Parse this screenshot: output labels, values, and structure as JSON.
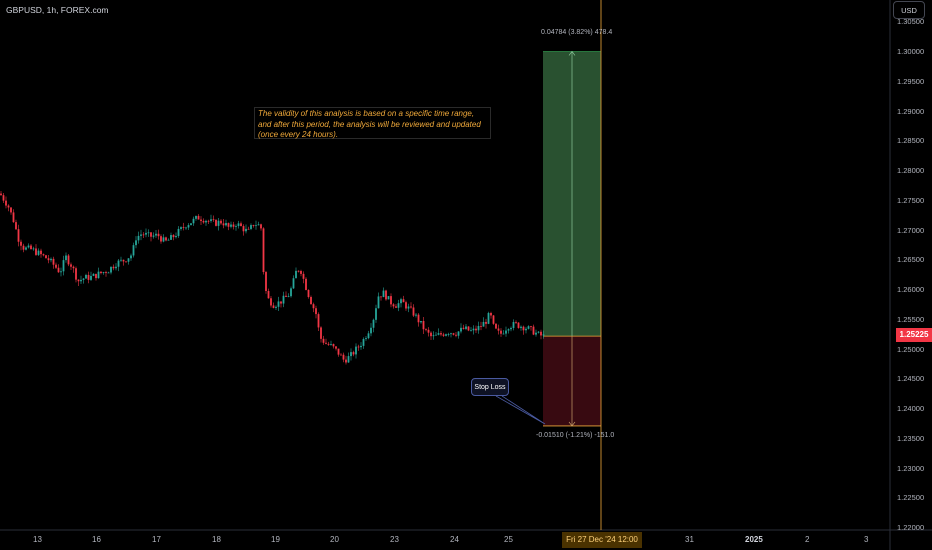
{
  "header": {
    "symbol": "GBPUSD, 1h, FOREX.com",
    "currency": "USD"
  },
  "price_axis": {
    "labels": [
      "1.30500",
      "1.30000",
      "1.29500",
      "1.29000",
      "1.28500",
      "1.28000",
      "1.27500",
      "1.27000",
      "1.26500",
      "1.26000",
      "1.25500",
      "1.25000",
      "1.24500",
      "1.24000",
      "1.23500",
      "1.23000",
      "1.22500",
      "1.22000"
    ],
    "current_price": "1.25225",
    "current_price_color": "#f23645"
  },
  "time_axis": {
    "labels": [
      {
        "text": "13",
        "bold": false
      },
      {
        "text": "16",
        "bold": false
      },
      {
        "text": "17",
        "bold": false
      },
      {
        "text": "18",
        "bold": false
      },
      {
        "text": "19",
        "bold": false
      },
      {
        "text": "20",
        "bold": false
      },
      {
        "text": "23",
        "bold": false
      },
      {
        "text": "24",
        "bold": false
      },
      {
        "text": "25",
        "bold": false
      },
      {
        "text": "31",
        "bold": false
      },
      {
        "text": "2025",
        "bold": true
      },
      {
        "text": "2",
        "bold": false
      },
      {
        "text": "3",
        "bold": false
      }
    ],
    "crosshair_label": "Fri 27 Dec '24   12:00"
  },
  "annotation": {
    "note": "The validity of this analysis is based on a specific time range, and after this period, the analysis will be reviewed and updated (once every 24 hours).",
    "note_color": "#f0a93a"
  },
  "position": {
    "entry": 1.25225,
    "target": 1.30009,
    "stop": 1.23715,
    "target_label": "0.04784 (3.82%) 478.4",
    "stop_label": "-0.01510 (-1.21%) -151.0",
    "stop_callout": "Stop Loss",
    "profit_color": "#2e5a35",
    "loss_color": "#3b0b12"
  },
  "chart_data": {
    "type": "candlestick",
    "up_color": "#26a69a",
    "down_color": "#f23645",
    "close_path": [
      [
        0,
        1.2762
      ],
      [
        8,
        1.2742
      ],
      [
        14,
        1.2715
      ],
      [
        18,
        1.2688
      ],
      [
        24,
        1.267
      ],
      [
        32,
        1.2668
      ],
      [
        40,
        1.266
      ],
      [
        48,
        1.2652
      ],
      [
        55,
        1.264
      ],
      [
        60,
        1.263
      ],
      [
        66,
        1.2655
      ],
      [
        72,
        1.264
      ],
      [
        78,
        1.2615
      ],
      [
        84,
        1.262
      ],
      [
        92,
        1.2622
      ],
      [
        100,
        1.2628
      ],
      [
        108,
        1.2633
      ],
      [
        116,
        1.2645
      ],
      [
        124,
        1.265
      ],
      [
        132,
        1.266
      ],
      [
        136,
        1.2688
      ],
      [
        142,
        1.2695
      ],
      [
        150,
        1.269
      ],
      [
        158,
        1.2692
      ],
      [
        165,
        1.268
      ],
      [
        172,
        1.2688
      ],
      [
        180,
        1.27
      ],
      [
        186,
        1.271
      ],
      [
        192,
        1.2715
      ],
      [
        198,
        1.2722
      ],
      [
        206,
        1.2718
      ],
      [
        214,
        1.2712
      ],
      [
        222,
        1.2715
      ],
      [
        230,
        1.2703
      ],
      [
        236,
        1.2712
      ],
      [
        242,
        1.2705
      ],
      [
        248,
        1.2697
      ],
      [
        254,
        1.2712
      ],
      [
        260,
        1.2708
      ],
      [
        262,
        1.27
      ],
      [
        264,
        1.261
      ],
      [
        268,
        1.2585
      ],
      [
        274,
        1.2575
      ],
      [
        280,
        1.258
      ],
      [
        288,
        1.259
      ],
      [
        292,
        1.2605
      ],
      [
        296,
        1.263
      ],
      [
        300,
        1.2638
      ],
      [
        305,
        1.261
      ],
      [
        310,
        1.2585
      ],
      [
        316,
        1.256
      ],
      [
        320,
        1.252
      ],
      [
        326,
        1.251
      ],
      [
        332,
        1.2505
      ],
      [
        338,
        1.2495
      ],
      [
        344,
        1.2482
      ],
      [
        350,
        1.2488
      ],
      [
        356,
        1.25
      ],
      [
        362,
        1.2512
      ],
      [
        368,
        1.253
      ],
      [
        374,
        1.2555
      ],
      [
        378,
        1.259
      ],
      [
        384,
        1.2595
      ],
      [
        390,
        1.258
      ],
      [
        396,
        1.2575
      ],
      [
        402,
        1.258
      ],
      [
        408,
        1.257
      ],
      [
        414,
        1.256
      ],
      [
        420,
        1.2545
      ],
      [
        426,
        1.253
      ],
      [
        432,
        1.252
      ],
      [
        440,
        1.2525
      ],
      [
        448,
        1.253
      ],
      [
        456,
        1.2528
      ],
      [
        464,
        1.2535
      ],
      [
        472,
        1.253
      ],
      [
        480,
        1.2538
      ],
      [
        486,
        1.2548
      ],
      [
        490,
        1.256
      ],
      [
        494,
        1.2535
      ],
      [
        500,
        1.2525
      ],
      [
        508,
        1.254
      ],
      [
        516,
        1.2542
      ],
      [
        524,
        1.2538
      ],
      [
        532,
        1.2532
      ],
      [
        538,
        1.2525
      ],
      [
        544,
        1.2522
      ]
    ]
  }
}
